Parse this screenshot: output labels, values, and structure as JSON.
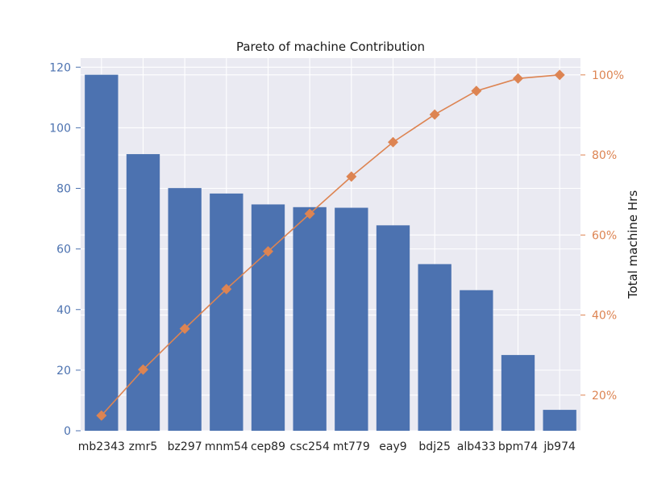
{
  "chart_data": {
    "type": "bar",
    "title": "Pareto of machine Contribution",
    "xlabel": "",
    "ylabel": "",
    "y2label": "Total machine Hrs",
    "categories": [
      "mb2343",
      "zmr5",
      "bz297",
      "mnm54",
      "cep89",
      "csc254",
      "mt779",
      "eay9",
      "bdj25",
      "alb433",
      "bpm74",
      "jb974"
    ],
    "values": [
      117.5,
      91.3,
      80.1,
      78.3,
      74.7,
      73.8,
      73.6,
      67.8,
      55.0,
      46.4,
      25.0,
      6.9
    ],
    "cumulative_pct": [
      14.9,
      26.4,
      36.6,
      46.5,
      55.9,
      65.3,
      74.6,
      83.2,
      90.1,
      96.0,
      99.1,
      100.0
    ],
    "ylim": [
      0,
      123
    ],
    "y2lim": [
      11.1,
      104.2
    ],
    "yticks": [
      0,
      20,
      40,
      60,
      80,
      100,
      120
    ],
    "y2ticks": [
      20,
      40,
      60,
      80,
      100
    ],
    "y2tick_labels": [
      "20%",
      "40%",
      "60%",
      "80%",
      "100%"
    ],
    "grid": true,
    "colors": {
      "bar": "#4c72b0",
      "line": "#dd8452",
      "background": "#eaeaf2",
      "grid": "#ffffff",
      "left_axis_text": "#4c72b0",
      "right_axis_text": "#dd8452"
    }
  }
}
